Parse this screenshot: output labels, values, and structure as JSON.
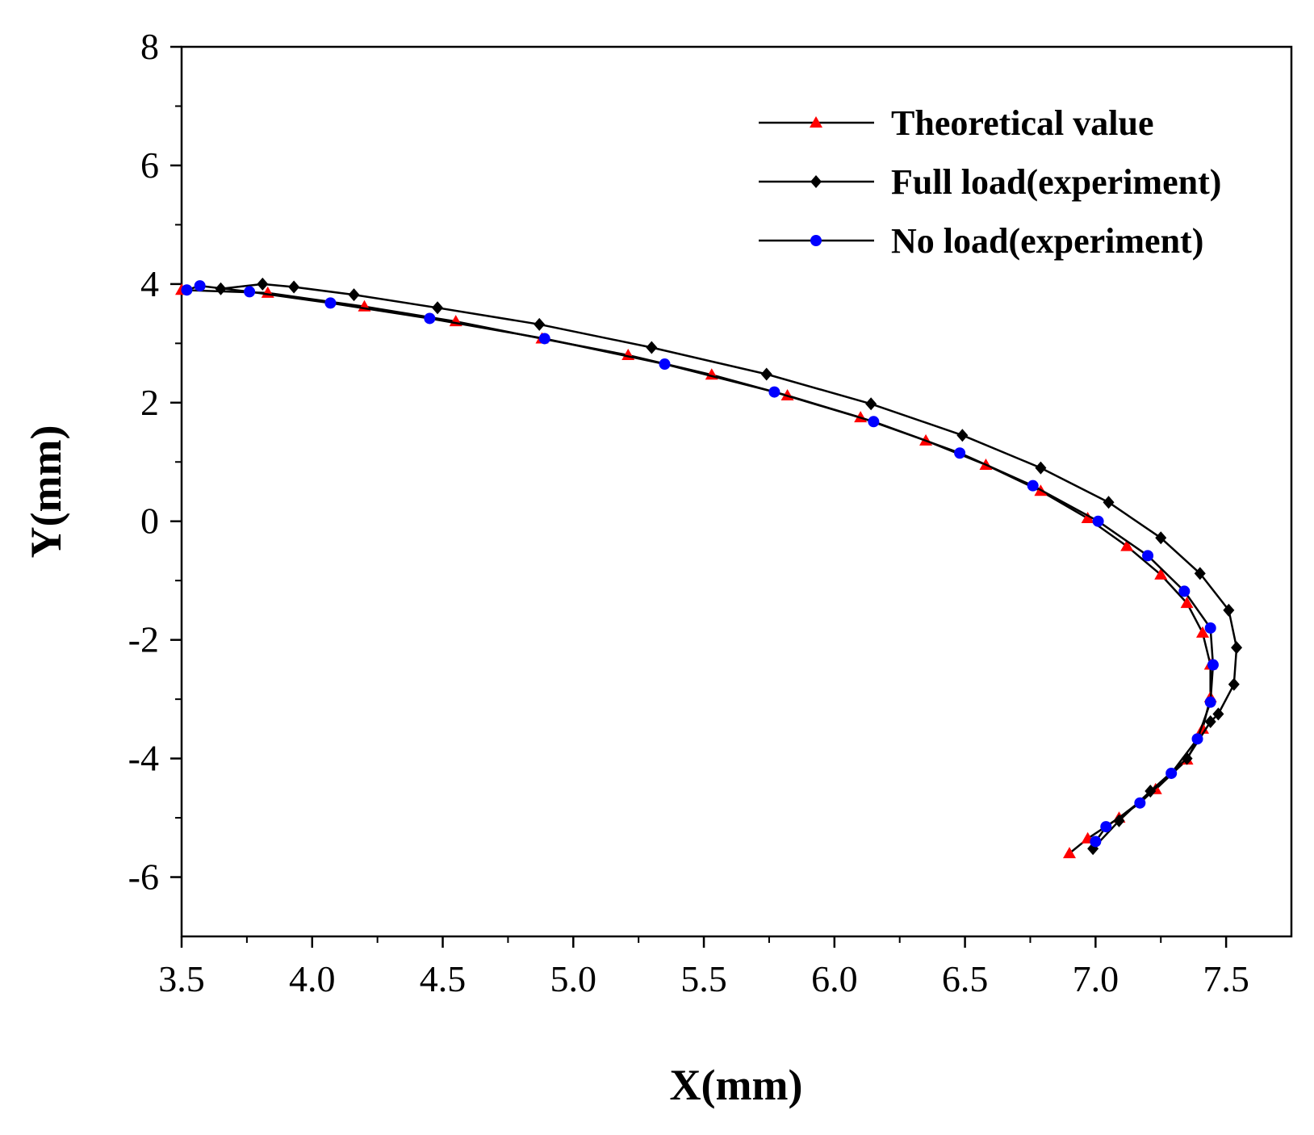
{
  "chart_data": {
    "type": "line",
    "title": "",
    "xlabel": "X(mm)",
    "ylabel": "Y(mm)",
    "xlim": [
      3.5,
      7.75
    ],
    "ylim": [
      -7,
      8
    ],
    "xticks": [
      3.5,
      4.0,
      4.5,
      5.0,
      5.5,
      6.0,
      6.5,
      7.0,
      7.5
    ],
    "xtick_labels": [
      "3.5",
      "4.0",
      "4.5",
      "5.0",
      "5.5",
      "6.0",
      "6.5",
      "7.0",
      "7.5"
    ],
    "yticks": [
      -6,
      -4,
      -2,
      0,
      2,
      4,
      6,
      8
    ],
    "ytick_labels": [
      "-6",
      "-4",
      "-2",
      "0",
      "2",
      "4",
      "6",
      "8"
    ],
    "grid": false,
    "legend_position": "top-right",
    "series": [
      {
        "name": "Theoretical value",
        "marker": "triangle",
        "color": "#ff0000",
        "line_color": "#000000",
        "x": [
          3.5,
          3.83,
          4.2,
          4.55,
          4.88,
          5.21,
          5.53,
          5.82,
          6.1,
          6.35,
          6.58,
          6.79,
          6.97,
          7.12,
          7.25,
          7.35,
          7.41,
          7.44,
          7.44,
          7.41,
          7.35,
          7.23,
          7.09,
          6.97,
          6.9
        ],
        "y": [
          3.9,
          3.85,
          3.62,
          3.37,
          3.08,
          2.8,
          2.47,
          2.12,
          1.75,
          1.36,
          0.95,
          0.51,
          0.05,
          -0.42,
          -0.9,
          -1.38,
          -1.88,
          -2.42,
          -2.97,
          -3.5,
          -4.02,
          -4.52,
          -5.0,
          -5.35,
          -5.6
        ]
      },
      {
        "name": "Full load(experiment)",
        "marker": "diamond",
        "color": "#000000",
        "line_color": "#000000",
        "x": [
          3.65,
          3.81,
          3.93,
          4.16,
          4.48,
          4.87,
          5.3,
          5.74,
          6.14,
          6.49,
          6.79,
          7.05,
          7.25,
          7.4,
          7.51,
          7.54,
          7.53,
          7.47,
          7.44,
          7.35,
          7.21,
          7.09,
          6.99
        ],
        "y": [
          3.92,
          4.0,
          3.95,
          3.82,
          3.6,
          3.32,
          2.93,
          2.48,
          1.98,
          1.45,
          0.9,
          0.32,
          -0.28,
          -0.88,
          -1.5,
          -2.13,
          -2.75,
          -3.25,
          -3.38,
          -4.0,
          -4.55,
          -5.05,
          -5.52
        ]
      },
      {
        "name": "No load(experiment)",
        "marker": "circle",
        "color": "#0000ff",
        "line_color": "#000000",
        "x": [
          3.52,
          3.57,
          3.76,
          4.07,
          4.45,
          4.89,
          5.35,
          5.77,
          6.15,
          6.48,
          6.76,
          7.01,
          7.2,
          7.34,
          7.44,
          7.45,
          7.44,
          7.39,
          7.29,
          7.17,
          7.04,
          7.0
        ],
        "y": [
          3.9,
          3.97,
          3.87,
          3.68,
          3.42,
          3.08,
          2.65,
          2.18,
          1.68,
          1.15,
          0.6,
          0.0,
          -0.58,
          -1.18,
          -1.8,
          -2.42,
          -3.05,
          -3.67,
          -4.25,
          -4.75,
          -5.15,
          -5.4
        ]
      }
    ]
  }
}
